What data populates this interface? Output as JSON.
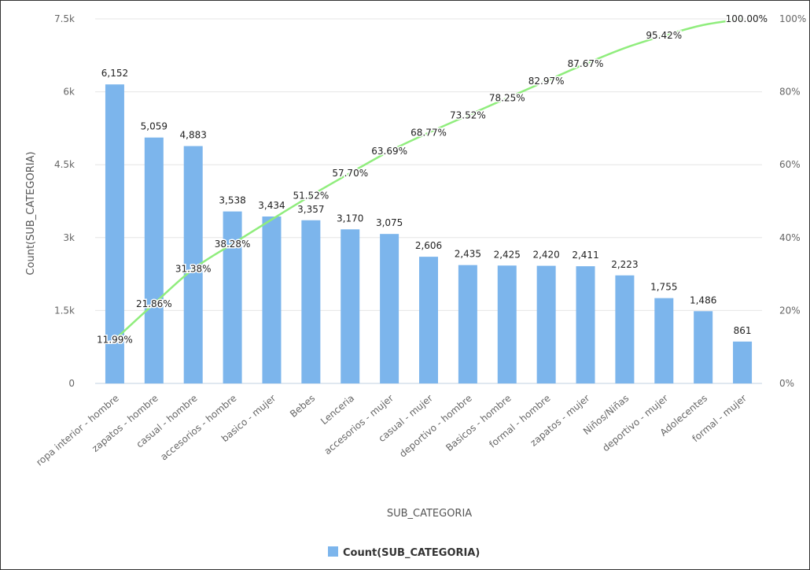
{
  "chart_data": {
    "type": "bar",
    "categories": [
      "ropa interior - hombre",
      "zapatos - hombre",
      "casual - hombre",
      "accesorios - hombre",
      "basico - mujer",
      "Bebes",
      "Lenceria",
      "accesorios - mujer",
      "casual - mujer",
      "deportivo - hombre",
      "Basicos - hombre",
      "formal - hombre",
      "zapatos - mujer",
      "Niños/Niñas",
      "deportivo - mujer",
      "Adolecentes",
      "formal - mujer"
    ],
    "series": [
      {
        "name": "Count(SUB_CATEGORIA)",
        "type": "bar",
        "axis": "left",
        "values": [
          6152,
          5059,
          4883,
          3538,
          3434,
          3357,
          3170,
          3075,
          2606,
          2435,
          2425,
          2420,
          2411,
          2223,
          1755,
          1486,
          861
        ],
        "labels": [
          "6,152",
          "5,059",
          "4,883",
          "3,538",
          "3,434",
          "3,357",
          "3,170",
          "3,075",
          "2,606",
          "2,435",
          "2,425",
          "2,420",
          "2,411",
          "2,223",
          "1,755",
          "1,486",
          "861"
        ]
      },
      {
        "type": "line",
        "axis": "right",
        "values": [
          11.99,
          21.86,
          31.38,
          38.28,
          44.97,
          51.52,
          57.7,
          63.69,
          68.77,
          73.52,
          78.25,
          82.97,
          87.67,
          92.0,
          95.42,
          98.32,
          100.0
        ],
        "labels": [
          "11.99%",
          "21.86%",
          "31.38%",
          "38.28%",
          "",
          "51.52%",
          "57.70%",
          "63.69%",
          "68.77%",
          "73.52%",
          "78.25%",
          "82.97%",
          "87.67%",
          "",
          "95.42%",
          "",
          "100.00%"
        ]
      }
    ],
    "xlabel": "SUB_CATEGORIA",
    "ylabel": "Count(SUB_CATEGORIA)",
    "ylim": [
      0,
      7500
    ],
    "y2lim": [
      0,
      100
    ],
    "yticks": [
      0,
      1500,
      3000,
      4500,
      6000,
      7500
    ],
    "ytick_labels": [
      "0",
      "1.5k",
      "3k",
      "4.5k",
      "6k",
      "7.5k"
    ],
    "y2ticks": [
      0,
      20,
      40,
      60,
      80,
      100
    ],
    "y2tick_labels": [
      "0%",
      "20%",
      "40%",
      "60%",
      "80%",
      "100%"
    ],
    "grid": true,
    "legend": {
      "position": "bottom",
      "entries": [
        "Count(SUB_CATEGORIA)"
      ]
    },
    "colors": {
      "bar": "#7cb5ec",
      "line": "#90ed7d",
      "grid": "#e6e6e6"
    }
  }
}
